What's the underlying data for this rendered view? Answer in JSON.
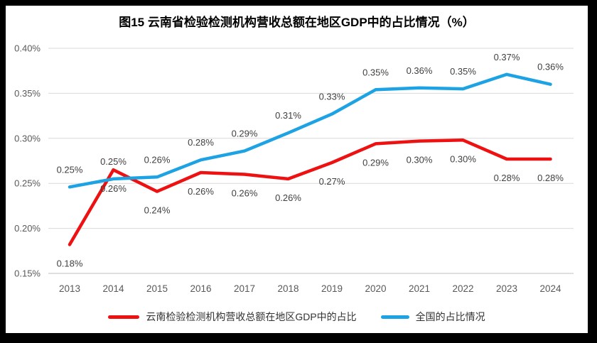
{
  "title": "图15 云南省检验检测机构营收总额在地区GDP中的占比情况（%）",
  "colors": {
    "yunnan_line": "#EE1111",
    "national_line": "#1DA3E3",
    "gridline": "#D9D9D9",
    "axis_line": "#BFBFBF",
    "axis_text": "#595959",
    "data_label_text": "#404040",
    "title_text": "#000000",
    "frame": "#000000",
    "plot_background": "#FFFFFF"
  },
  "chart_data": {
    "type": "line",
    "title": "图15 云南省检验检测机构营收总额在地区GDP中的占比情况（%）",
    "categories": [
      "2013",
      "2014",
      "2015",
      "2016",
      "2017",
      "2018",
      "2019",
      "2020",
      "2021",
      "2022",
      "2023",
      "2024"
    ],
    "y_ticks": [
      "0.40%",
      "0.35%",
      "0.30%",
      "0.25%",
      "0.20%",
      "0.15%"
    ],
    "ylim": [
      0.15,
      0.4
    ],
    "unit": "%",
    "grid": true,
    "legend_position": "bottom",
    "series": [
      {
        "name": "云南检验检测机构营收总额在地区GDP中的占比",
        "color": "#EE1111",
        "data_labels": [
          "0.18%",
          "0.26%",
          "0.24%",
          "0.26%",
          "0.26%",
          "0.26%",
          "0.27%",
          "0.29%",
          "0.30%",
          "0.30%",
          "0.28%",
          "0.28%"
        ],
        "values": [
          0.18,
          0.26,
          0.24,
          0.26,
          0.26,
          0.26,
          0.27,
          0.29,
          0.3,
          0.3,
          0.28,
          0.28
        ],
        "plot_values": [
          0.182,
          0.265,
          0.241,
          0.262,
          0.26,
          0.255,
          0.273,
          0.294,
          0.297,
          0.298,
          0.277,
          0.277
        ],
        "label_position": "below"
      },
      {
        "name": "全国的占比情况",
        "color": "#1DA3E3",
        "data_labels": [
          "0.25%",
          "0.25%",
          "0.26%",
          "0.28%",
          "0.29%",
          "0.31%",
          "0.33%",
          "0.35%",
          "0.36%",
          "0.35%",
          "0.37%",
          "0.36%"
        ],
        "values": [
          0.25,
          0.25,
          0.26,
          0.28,
          0.29,
          0.31,
          0.33,
          0.35,
          0.36,
          0.35,
          0.37,
          0.36
        ],
        "plot_values": [
          0.246,
          0.255,
          0.257,
          0.276,
          0.286,
          0.306,
          0.327,
          0.354,
          0.356,
          0.355,
          0.371,
          0.36
        ],
        "label_position": "above"
      }
    ]
  }
}
